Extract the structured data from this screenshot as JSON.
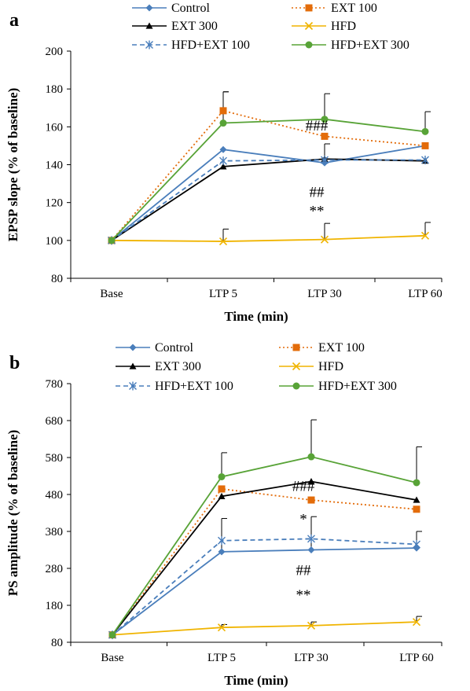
{
  "chart_data": [
    {
      "type": "line",
      "panel_label": "a",
      "categories": [
        "Base",
        "LTP 5",
        "LTP 30",
        "LTP 60"
      ],
      "xlabel": "Time (min)",
      "ylabel": "EPSP slope (% of baseline)",
      "ylim": [
        80,
        200
      ],
      "yticks": [
        80,
        100,
        120,
        140,
        160,
        180,
        200
      ],
      "grid": false,
      "legend_position": "top",
      "series": [
        {
          "name": "Control",
          "color": "#4a7ebb",
          "marker": "diamond",
          "dash": "solid",
          "values": [
            100,
            148,
            141,
            150
          ],
          "errors": [
            0,
            0,
            0,
            0
          ]
        },
        {
          "name": "EXT 100",
          "color": "#e36c0a",
          "marker": "square",
          "dash": "dotted",
          "values": [
            100,
            168.5,
            155,
            150
          ],
          "errors": [
            0,
            10,
            0,
            0
          ]
        },
        {
          "name": "EXT 300",
          "color": "#000000",
          "marker": "triangle",
          "dash": "solid",
          "values": [
            100,
            139,
            143,
            142
          ],
          "errors": [
            0,
            0,
            8,
            0
          ]
        },
        {
          "name": "HFD",
          "color": "#f0b400",
          "marker": "x",
          "dash": "solid",
          "values": [
            100,
            99.5,
            100.5,
            102.5
          ],
          "errors": [
            0,
            6.5,
            8.5,
            7
          ]
        },
        {
          "name": "HFD+EXT 100",
          "color": "#4a7ebb",
          "marker": "star",
          "dash": "dashed",
          "values": [
            100,
            142,
            142.5,
            142.5
          ],
          "errors": [
            0,
            0,
            0,
            0
          ]
        },
        {
          "name": "HFD+EXT 300",
          "color": "#58a337",
          "marker": "circle",
          "dash": "solid",
          "values": [
            100,
            162,
            164,
            157.5
          ],
          "errors": [
            0,
            16.5,
            13.5,
            10.5
          ]
        }
      ],
      "annotations": [
        {
          "text": "###",
          "x": "LTP 30",
          "y": 158
        },
        {
          "text": "##",
          "x": "LTP 30",
          "y": 123
        },
        {
          "text": "**",
          "x": "LTP 30",
          "y": 113
        }
      ]
    },
    {
      "type": "line",
      "panel_label": "b",
      "categories": [
        "Base",
        "LTP 5",
        "LTP 30",
        "LTP 60"
      ],
      "xlabel": "Time (min)",
      "ylabel": "PS amplitude (% of baseline)",
      "ylim": [
        80,
        780
      ],
      "yticks": [
        80,
        180,
        280,
        380,
        480,
        580,
        680,
        780
      ],
      "grid": false,
      "legend_position": "top",
      "series": [
        {
          "name": "Control",
          "color": "#4a7ebb",
          "marker": "diamond",
          "dash": "solid",
          "values": [
            100,
            325,
            330,
            335
          ],
          "errors": [
            0,
            90,
            90,
            45
          ]
        },
        {
          "name": "EXT 100",
          "color": "#e36c0a",
          "marker": "square",
          "dash": "dotted",
          "values": [
            100,
            495,
            465,
            440
          ],
          "errors": [
            0,
            0,
            0,
            0
          ]
        },
        {
          "name": "EXT 300",
          "color": "#000000",
          "marker": "triangle",
          "dash": "solid",
          "values": [
            100,
            475,
            515,
            465
          ],
          "errors": [
            0,
            0,
            0,
            0
          ]
        },
        {
          "name": "HFD",
          "color": "#f0b400",
          "marker": "x",
          "dash": "solid",
          "values": [
            100,
            120,
            125,
            135
          ],
          "errors": [
            0,
            8,
            10,
            15
          ]
        },
        {
          "name": "HFD+EXT 100",
          "color": "#4a7ebb",
          "marker": "star",
          "dash": "dashed",
          "values": [
            100,
            355,
            360,
            345
          ],
          "errors": [
            0,
            0,
            0,
            0
          ]
        },
        {
          "name": "HFD+EXT 300",
          "color": "#58a337",
          "marker": "circle",
          "dash": "solid",
          "values": [
            100,
            528,
            582,
            512
          ],
          "errors": [
            0,
            65,
            100,
            97
          ]
        }
      ],
      "annotations": [
        {
          "text": "###",
          "x": "LTP 30",
          "y": 490
        },
        {
          "text": "*",
          "x": "LTP 30",
          "y": 400
        },
        {
          "text": "##",
          "x": "LTP 30",
          "y": 262
        },
        {
          "text": "**",
          "x": "LTP 30",
          "y": 195
        }
      ]
    }
  ]
}
